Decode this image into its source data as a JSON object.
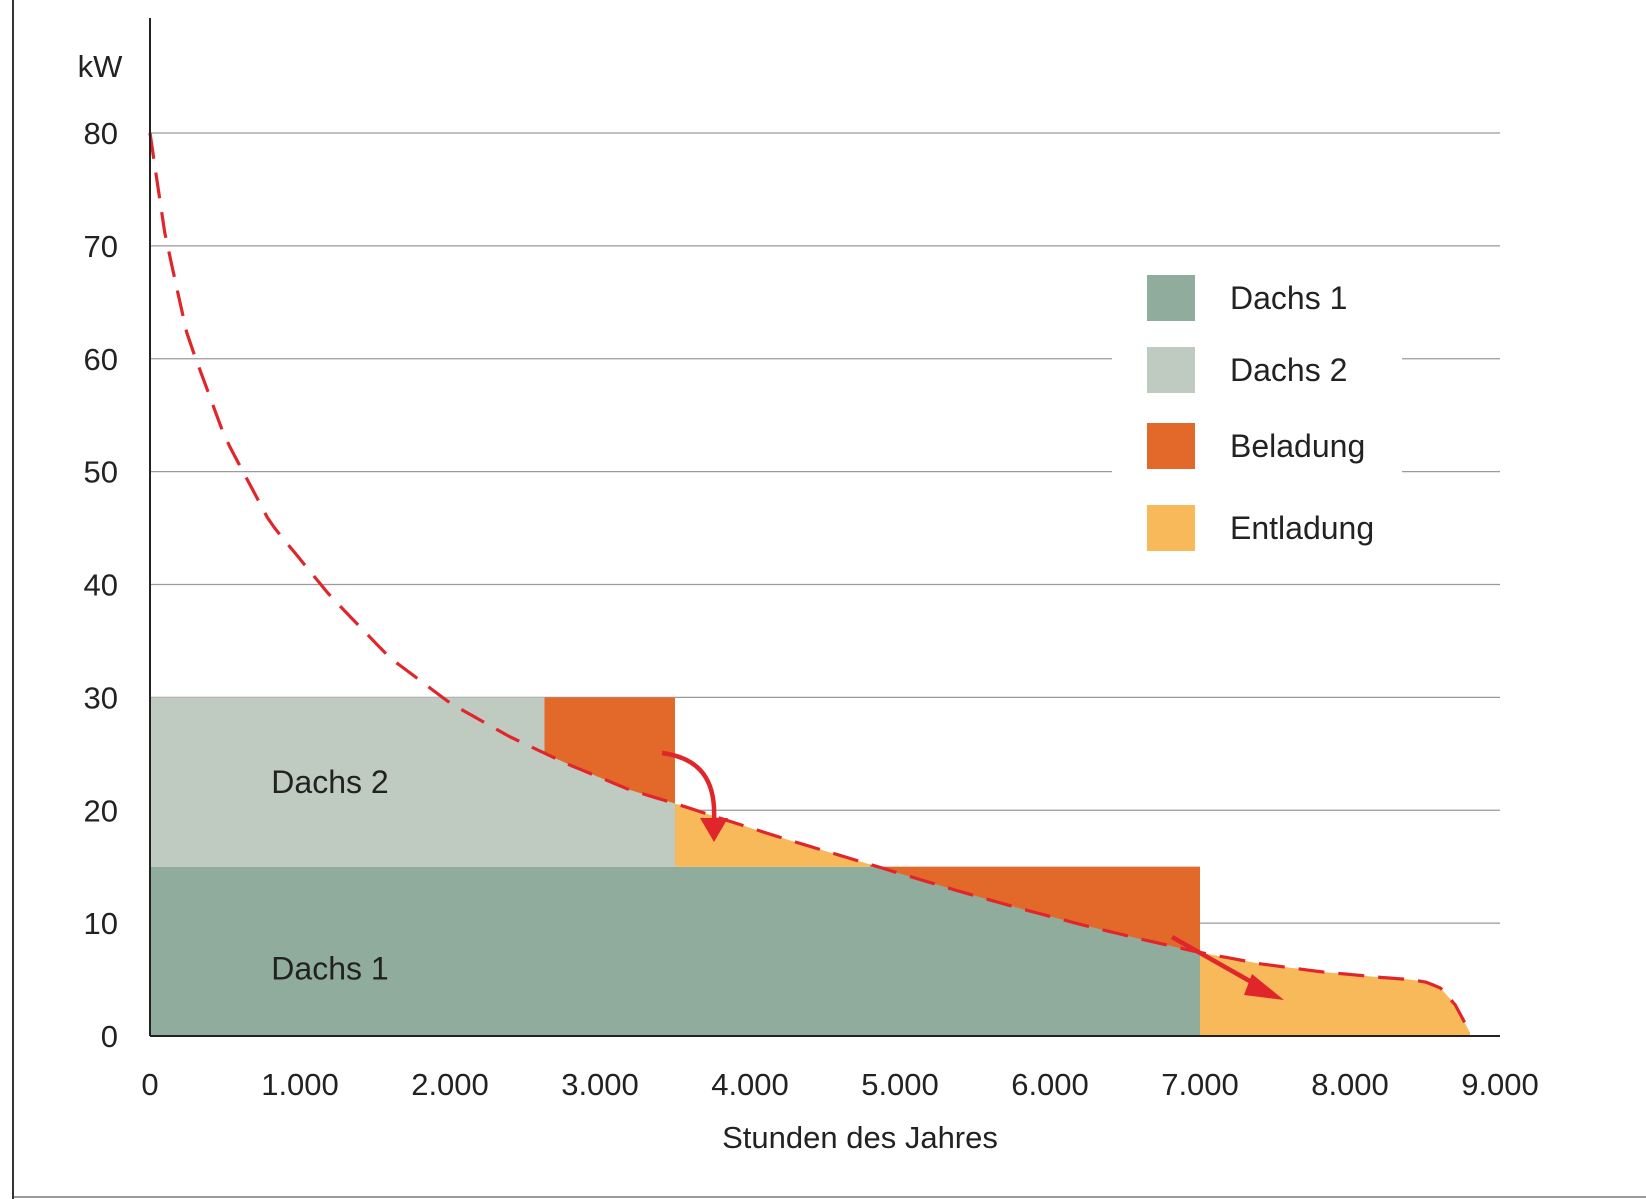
{
  "chart_data": {
    "type": "area",
    "unit_label": "kW",
    "xlabel": "Stunden des Jahres",
    "ylabel": "",
    "xlim": [
      0,
      9000
    ],
    "ylim": [
      0,
      80
    ],
    "x_ticks": [
      {
        "value": 0,
        "label": "0"
      },
      {
        "value": 1000,
        "label": "1.000"
      },
      {
        "value": 2000,
        "label": "2.000"
      },
      {
        "value": 3000,
        "label": "3.000"
      },
      {
        "value": 4000,
        "label": "4.000"
      },
      {
        "value": 5000,
        "label": "5.000"
      },
      {
        "value": 6000,
        "label": "6.000"
      },
      {
        "value": 7000,
        "label": "7.000"
      },
      {
        "value": 8000,
        "label": "8.000"
      },
      {
        "value": 9000,
        "label": "9.000"
      }
    ],
    "y_ticks": [
      {
        "value": 0,
        "label": "0"
      },
      {
        "value": 10,
        "label": "10"
      },
      {
        "value": 20,
        "label": "20"
      },
      {
        "value": 30,
        "label": "30"
      },
      {
        "value": 40,
        "label": "40"
      },
      {
        "value": 50,
        "label": "50"
      },
      {
        "value": 60,
        "label": "60"
      },
      {
        "value": 70,
        "label": "70"
      },
      {
        "value": 80,
        "label": "80"
      }
    ],
    "grid": true,
    "legend_position": "right",
    "colors": {
      "dachs1": "#90ac9c",
      "dachs2": "#bfcac1",
      "beladung": "#e2692a",
      "entladung": "#f8b95a",
      "load_curve": "#e0262b",
      "grid": "#9a9a9a",
      "axis": "#222222"
    },
    "load_curve": {
      "style": "dashed",
      "x": [
        0,
        100,
        250,
        500,
        800,
        1200,
        1600,
        2000,
        2400,
        2800,
        3200,
        3500,
        3800,
        4200,
        4600,
        5000,
        5400,
        5800,
        6200,
        6600,
        7000,
        7400,
        7800,
        8200,
        8400,
        8500,
        8600,
        8700,
        8800
      ],
      "y": [
        80,
        71,
        62,
        53,
        45.5,
        39,
        33.5,
        29.5,
        26.5,
        24,
        21.8,
        20.6,
        19.3,
        17.6,
        16,
        14.4,
        12.8,
        11.3,
        9.9,
        8.6,
        7.4,
        6.4,
        5.7,
        5.2,
        5.0,
        4.8,
        4.3,
        2.8,
        0.3
      ]
    },
    "areas": [
      {
        "name": "Dachs 1",
        "color_key": "dachs1",
        "x": [
          0,
          7000
        ],
        "y_low": [
          0,
          0
        ],
        "y_high": [
          15,
          15
        ],
        "note": "constant 15 kW from 0 to 7.000 h, then 0"
      },
      {
        "name": "Dachs 2",
        "color_key": "dachs2",
        "x": [
          0,
          3500
        ],
        "y_low": [
          15,
          15
        ],
        "y_high": [
          30,
          30
        ],
        "note": "constant 30 kW total from 0 to 3.500 h"
      },
      {
        "name": "Beladung",
        "color_key": "beladung",
        "segments": [
          {
            "x_from": 2630,
            "x_to": 3500,
            "y_top": 30,
            "below": "load_curve"
          },
          {
            "x_from": 4800,
            "x_to": 7000,
            "y_top": 15,
            "below": "load_curve"
          }
        ]
      },
      {
        "name": "Entladung",
        "color_key": "entladung",
        "segments": [
          {
            "x_from": 3500,
            "x_to": 4800,
            "y_bottom": 15,
            "above": "load_curve"
          },
          {
            "x_from": 7000,
            "x_to": 8800,
            "y_bottom": 0,
            "above": "load_curve"
          }
        ]
      }
    ],
    "area_labels": [
      {
        "text": "Dachs 2",
        "x": 1500,
        "y": 22.5
      },
      {
        "text": "Dachs 1",
        "x": 1500,
        "y": 6
      }
    ],
    "legend": [
      {
        "label": "Dachs 1",
        "color_key": "dachs1"
      },
      {
        "label": "Dachs 2",
        "color_key": "dachs2"
      },
      {
        "label": "Beladung",
        "color_key": "beladung"
      },
      {
        "label": "Entladung",
        "color_key": "entladung"
      }
    ]
  }
}
